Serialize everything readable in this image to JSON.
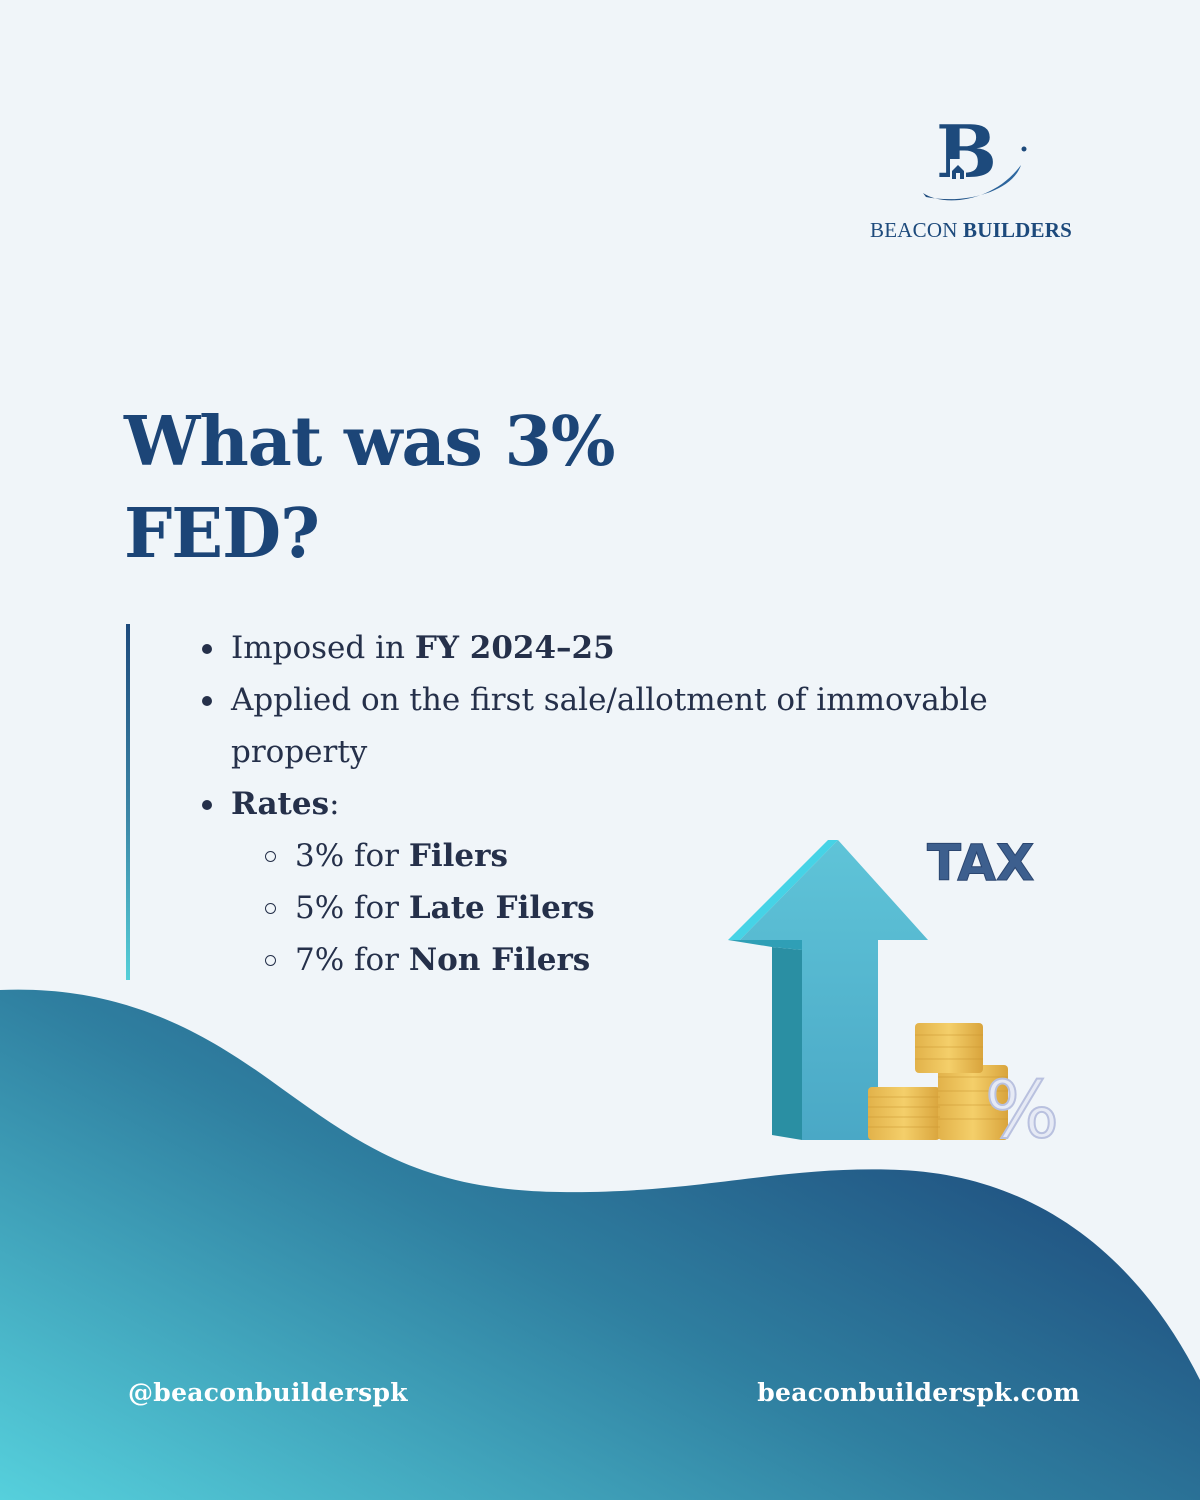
{
  "brand": {
    "name_regular": "BEACON",
    "name_bold": "BUILDERS",
    "logo_letter": "B"
  },
  "heading": {
    "line1": "What was 3%",
    "line2": "FED?"
  },
  "points": {
    "imposed_prefix": "Imposed in ",
    "imposed_bold": "FY 2024–25",
    "applied_line1": "Applied on the first sale/allotment of immovable",
    "applied_line2": "property",
    "rates_bold": "Rates",
    "rates_suffix": ":",
    "rates": [
      {
        "prefix": "3% for ",
        "label": "Filers"
      },
      {
        "prefix": "5% for ",
        "label": "Late Filers"
      },
      {
        "prefix": "7% for ",
        "label": "Non Filers"
      }
    ]
  },
  "illustration": {
    "tax_label": "TAX",
    "percent_label": "%"
  },
  "footer": {
    "handle": "@beaconbuilderspk",
    "website": "beaconbuilderspk.com"
  },
  "colors": {
    "background": "#f0f5f9",
    "navy": "#1c4577",
    "teal": "#55cfd8",
    "text": "#25304a"
  }
}
